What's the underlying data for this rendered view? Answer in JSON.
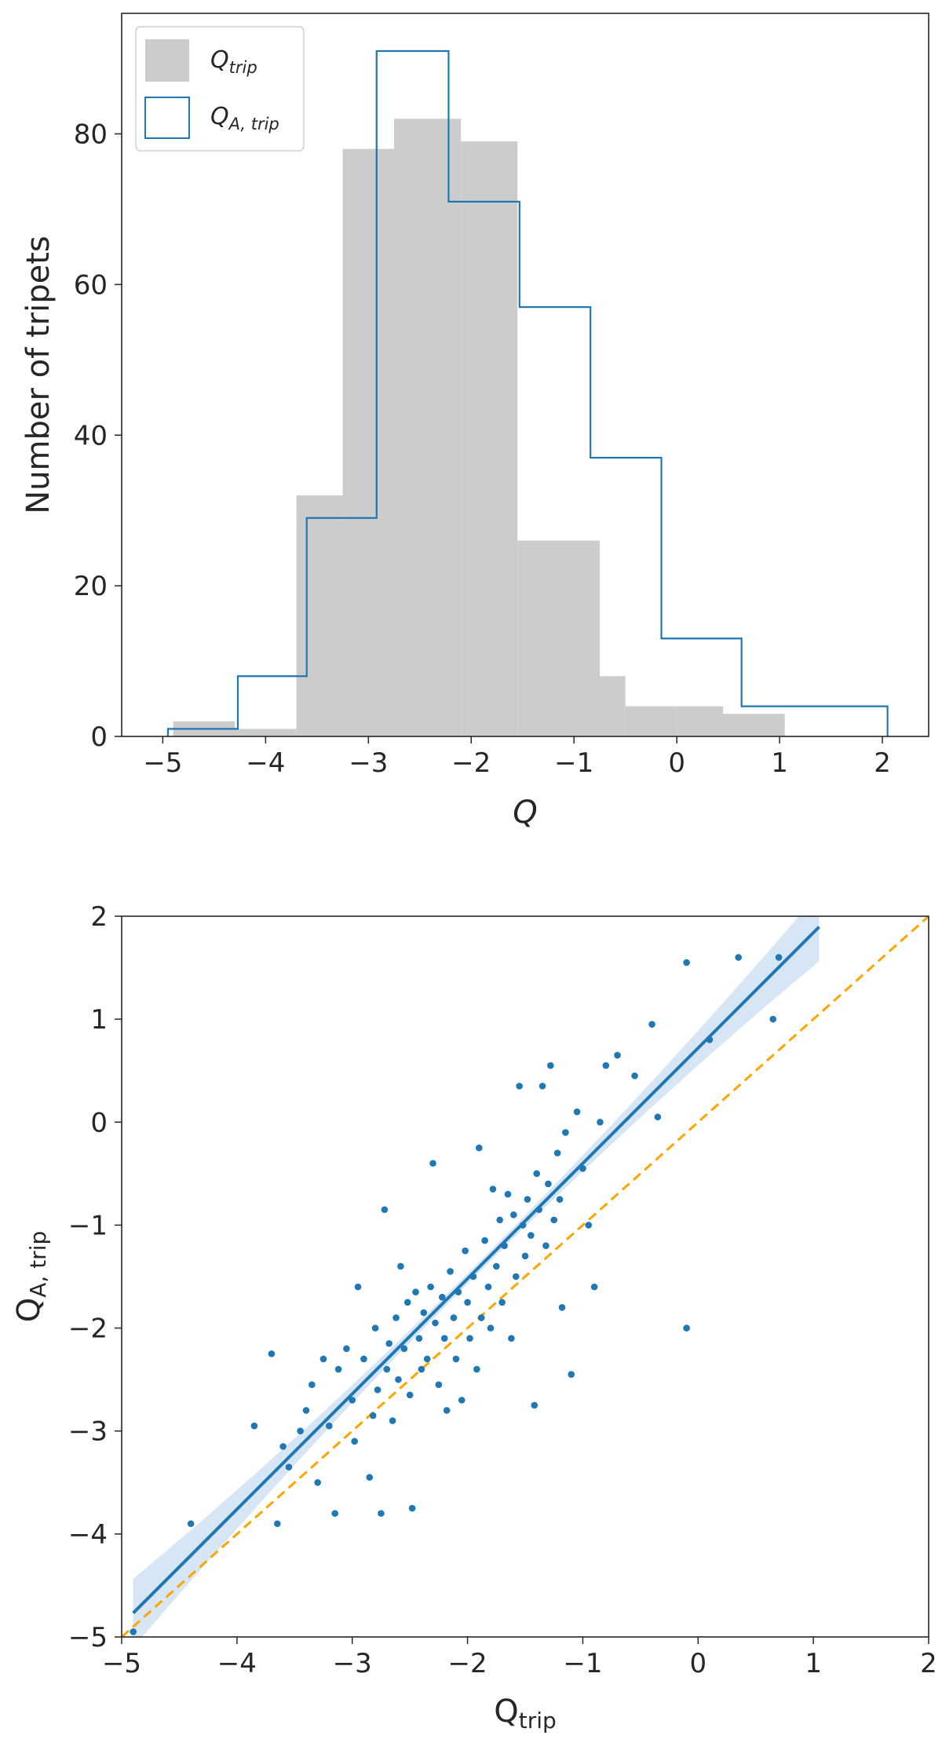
{
  "chart_data": [
    {
      "type": "histogram",
      "title": "",
      "xlabel": "Q",
      "ylabel": "Number of tripets",
      "xlim": [
        -5.4,
        2.45
      ],
      "ylim": [
        0,
        96
      ],
      "xticks": [
        -5,
        -4,
        -3,
        -2,
        -1,
        0,
        1,
        2
      ],
      "xtick_labels": [
        "−5",
        "−4",
        "−3",
        "−2",
        "−1",
        "0",
        "1",
        "2"
      ],
      "yticks": [
        0,
        20,
        40,
        60,
        80
      ],
      "ytick_labels": [
        "0",
        "20",
        "40",
        "60",
        "80"
      ],
      "legend_position": "top-left",
      "series": [
        {
          "name": "Q_trip",
          "legend_main": "Q",
          "legend_sub": "trip",
          "style": "filled",
          "color": "#cccccc",
          "bin_edges": [
            -4.9,
            -4.3,
            -3.7,
            -3.25,
            -2.75,
            -2.1,
            -1.55,
            -1.35,
            -0.75,
            -0.5,
            0.0,
            0.45,
            1.05
          ],
          "counts": [
            2,
            1,
            32,
            78,
            82,
            79,
            26,
            26,
            8,
            4,
            4,
            3
          ]
        },
        {
          "name": "Q_A,trip",
          "legend_main": "Q",
          "legend_sub": "A, trip",
          "style": "step",
          "color": "#1f77b4",
          "bin_edges": [
            -4.95,
            -4.27,
            -3.6,
            -2.92,
            -2.22,
            -1.53,
            -0.84,
            -0.15,
            0.63,
            2.05
          ],
          "counts": [
            1,
            8,
            29,
            91,
            71,
            57,
            37,
            13,
            4
          ]
        }
      ]
    },
    {
      "type": "scatter",
      "title": "",
      "xlabel_main": "Q",
      "xlabel_sub": "trip",
      "ylabel_main": "Q",
      "ylabel_sub": "A, trip",
      "xlim": [
        -5,
        2
      ],
      "ylim": [
        -5,
        2
      ],
      "xticks": [
        -5,
        -4,
        -3,
        -2,
        -1,
        0,
        1,
        2
      ],
      "xtick_labels": [
        "−5",
        "−4",
        "−3",
        "−2",
        "−1",
        "0",
        "1",
        "2"
      ],
      "yticks": [
        -5,
        -4,
        -3,
        -2,
        -1,
        0,
        1,
        2
      ],
      "ytick_labels": [
        "−5",
        "−4",
        "−3",
        "−2",
        "−1",
        "0",
        "1",
        "2"
      ],
      "point_color": "#1f77b4",
      "fit_line": {
        "slope": 1.12,
        "intercept": 0.72,
        "x_range": [
          -4.9,
          1.05
        ],
        "color": "#1f77b4",
        "band_color": "#c6dbef"
      },
      "identity_line": {
        "color": "#ffa500",
        "style": "dashed",
        "x_range": [
          -5,
          2
        ]
      },
      "points": [
        [
          -4.9,
          -4.95
        ],
        [
          -4.4,
          -3.9
        ],
        [
          -3.85,
          -2.95
        ],
        [
          -3.7,
          -2.25
        ],
        [
          -3.65,
          -3.9
        ],
        [
          -3.6,
          -3.15
        ],
        [
          -3.55,
          -3.35
        ],
        [
          -3.45,
          -3.0
        ],
        [
          -3.4,
          -2.8
        ],
        [
          -3.35,
          -2.55
        ],
        [
          -3.3,
          -3.5
        ],
        [
          -3.25,
          -2.3
        ],
        [
          -3.2,
          -2.95
        ],
        [
          -3.15,
          -3.8
        ],
        [
          -3.12,
          -2.4
        ],
        [
          -3.05,
          -2.2
        ],
        [
          -3.0,
          -2.7
        ],
        [
          -2.98,
          -3.1
        ],
        [
          -2.95,
          -1.6
        ],
        [
          -2.9,
          -2.3
        ],
        [
          -2.85,
          -3.45
        ],
        [
          -2.82,
          -2.85
        ],
        [
          -2.8,
          -2.0
        ],
        [
          -2.78,
          -2.6
        ],
        [
          -2.75,
          -3.8
        ],
        [
          -2.72,
          -0.85
        ],
        [
          -2.7,
          -2.4
        ],
        [
          -2.68,
          -2.15
        ],
        [
          -2.65,
          -2.9
        ],
        [
          -2.62,
          -1.9
        ],
        [
          -2.6,
          -2.5
        ],
        [
          -2.58,
          -1.4
        ],
        [
          -2.55,
          -2.2
        ],
        [
          -2.52,
          -1.75
        ],
        [
          -2.5,
          -2.65
        ],
        [
          -2.48,
          -3.75
        ],
        [
          -2.45,
          -1.65
        ],
        [
          -2.42,
          -2.1
        ],
        [
          -2.4,
          -2.4
        ],
        [
          -2.38,
          -1.85
        ],
        [
          -2.35,
          -2.3
        ],
        [
          -2.32,
          -1.6
        ],
        [
          -2.3,
          -0.4
        ],
        [
          -2.28,
          -1.95
        ],
        [
          -2.25,
          -2.55
        ],
        [
          -2.22,
          -1.7
        ],
        [
          -2.2,
          -2.1
        ],
        [
          -2.18,
          -2.8
        ],
        [
          -2.15,
          -1.45
        ],
        [
          -2.12,
          -1.9
        ],
        [
          -2.1,
          -2.3
        ],
        [
          -2.08,
          -1.65
        ],
        [
          -2.05,
          -2.7
        ],
        [
          -2.02,
          -1.25
        ],
        [
          -2.0,
          -1.75
        ],
        [
          -1.98,
          -2.1
        ],
        [
          -1.95,
          -1.5
        ],
        [
          -1.92,
          -2.4
        ],
        [
          -1.9,
          -0.25
        ],
        [
          -1.88,
          -1.9
        ],
        [
          -1.85,
          -1.15
        ],
        [
          -1.82,
          -1.6
        ],
        [
          -1.8,
          -2.0
        ],
        [
          -1.78,
          -0.65
        ],
        [
          -1.75,
          -1.4
        ],
        [
          -1.72,
          -0.95
        ],
        [
          -1.7,
          -1.75
        ],
        [
          -1.68,
          -1.2
        ],
        [
          -1.65,
          -0.7
        ],
        [
          -1.62,
          -2.1
        ],
        [
          -1.6,
          -0.9
        ],
        [
          -1.58,
          -1.5
        ],
        [
          -1.55,
          0.35
        ],
        [
          -1.52,
          -1.0
        ],
        [
          -1.5,
          -1.3
        ],
        [
          -1.48,
          -0.75
        ],
        [
          -1.45,
          -1.1
        ],
        [
          -1.42,
          -2.75
        ],
        [
          -1.4,
          -0.5
        ],
        [
          -1.38,
          -0.85
        ],
        [
          -1.35,
          0.35
        ],
        [
          -1.32,
          -1.2
        ],
        [
          -1.3,
          -0.6
        ],
        [
          -1.28,
          0.55
        ],
        [
          -1.25,
          -0.95
        ],
        [
          -1.22,
          -0.3
        ],
        [
          -1.2,
          -0.75
        ],
        [
          -1.18,
          -1.8
        ],
        [
          -1.15,
          -0.1
        ],
        [
          -1.1,
          -2.45
        ],
        [
          -1.05,
          0.1
        ],
        [
          -1.0,
          -0.45
        ],
        [
          -0.95,
          -1.0
        ],
        [
          -0.9,
          -1.6
        ],
        [
          -0.85,
          0.0
        ],
        [
          -0.8,
          0.55
        ],
        [
          -0.7,
          0.65
        ],
        [
          -0.55,
          0.45
        ],
        [
          -0.4,
          0.95
        ],
        [
          -0.35,
          0.05
        ],
        [
          -0.1,
          1.55
        ],
        [
          -0.1,
          -2.0
        ],
        [
          0.1,
          0.8
        ],
        [
          0.35,
          1.6
        ],
        [
          0.65,
          1.0
        ],
        [
          0.7,
          1.6
        ]
      ]
    }
  ]
}
